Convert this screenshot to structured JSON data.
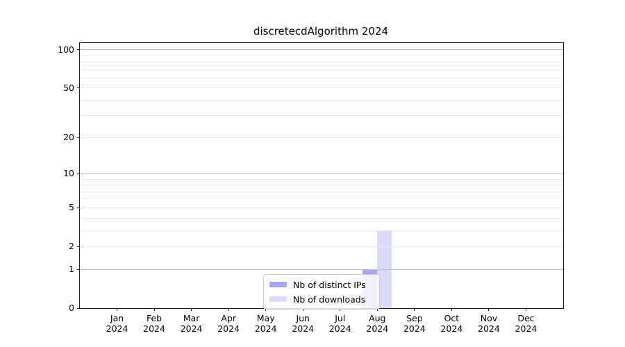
{
  "page": {
    "background_color": "#ffffff"
  },
  "chart_data": {
    "type": "bar",
    "title": "discretecdAlgorithm 2024",
    "x_categories": [
      "Jan",
      "Feb",
      "Mar",
      "Apr",
      "May",
      "Jun",
      "Jul",
      "Aug",
      "Sep",
      "Oct",
      "Nov",
      "Dec"
    ],
    "x_year_sublabel": "2024",
    "series": [
      {
        "name": "Nb of distinct IPs",
        "color": "#a5a8ec",
        "values": [
          0,
          0,
          0,
          0,
          0,
          0,
          0,
          1,
          0,
          0,
          0,
          0
        ]
      },
      {
        "name": "Nb of downloads",
        "color": "#d9dbf8",
        "values": [
          0,
          0,
          0,
          0,
          0,
          0,
          0,
          3,
          0,
          0,
          0,
          0
        ]
      }
    ],
    "y_axis": {
      "scale": "log1p",
      "ticks": [
        0,
        1,
        2,
        5,
        10,
        20,
        50,
        100
      ],
      "dark_grid_ticks": [
        1,
        10,
        100
      ],
      "minor_ticks": [
        3,
        4,
        6,
        7,
        8,
        9,
        30,
        40,
        60,
        70,
        80,
        90
      ],
      "range_top_value": 115
    },
    "grid": true,
    "legend_position": "lower center",
    "colors": {
      "spine": "#1a1a1a",
      "grid_dark": "#bbbbbb",
      "grid_light": "#e8e8e8",
      "legend_border": "#c9c9c9"
    }
  }
}
